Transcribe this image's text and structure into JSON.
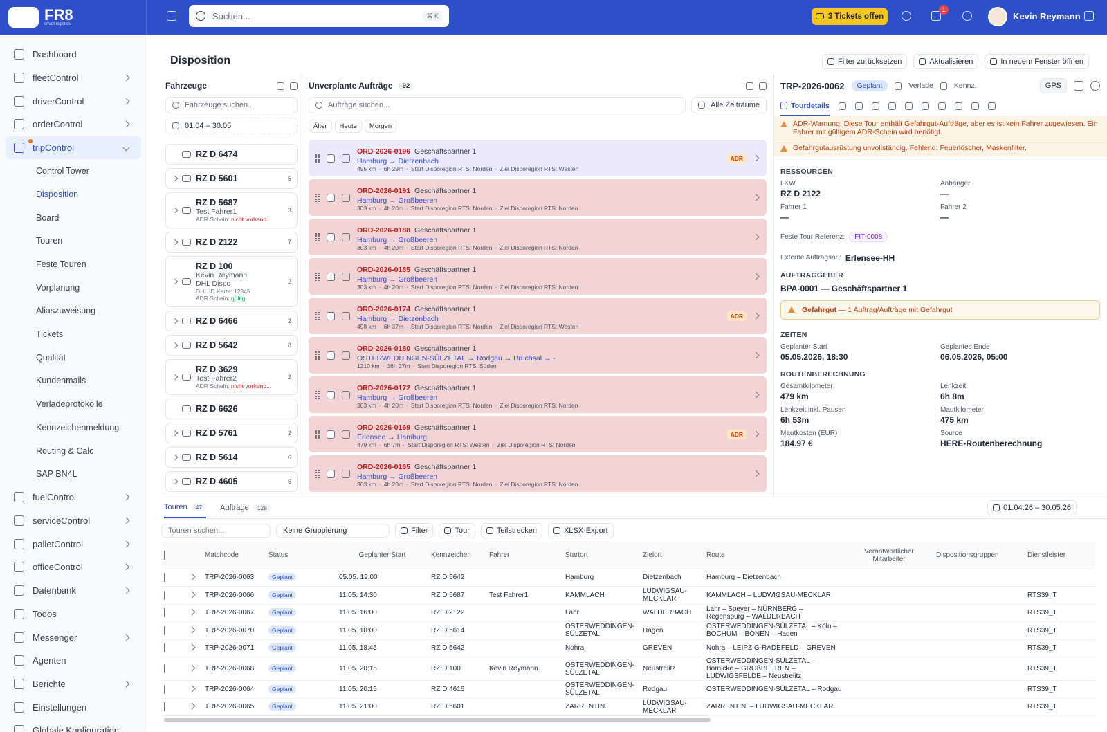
{
  "header": {
    "logo": "FR8",
    "logo_sub": "smart logistics",
    "search": "Suchen...",
    "shortcut": "⌘ K",
    "tickets": "3 Tickets offen",
    "notifications": "1",
    "user": "Kevin Reymann"
  },
  "sidebar": [
    {
      "label": "Dashboard",
      "expandable": false
    },
    {
      "label": "fleetControl",
      "expandable": true
    },
    {
      "label": "driverControl",
      "expandable": true
    },
    {
      "label": "orderControl",
      "expandable": true
    },
    {
      "label": "tripControl",
      "expandable": true,
      "active": true,
      "children": [
        "Control Tower",
        "Disposition",
        "Board",
        "Touren",
        "Feste Touren",
        "Vorplanung",
        "Aliaszuweisung",
        "Tickets",
        "Qualität",
        "Kundenmails",
        "Verladeprotokolle",
        "Kennzeichenmeldung",
        "Routing & Calc",
        "SAP BN4L"
      ],
      "active_child": 1
    },
    {
      "label": "fuelControl",
      "expandable": true
    },
    {
      "label": "serviceControl",
      "expandable": true
    },
    {
      "label": "palletControl",
      "expandable": true
    },
    {
      "label": "officeControl",
      "expandable": true
    },
    {
      "label": "Datenbank",
      "expandable": true
    },
    {
      "label": "Todos",
      "expandable": false
    },
    {
      "label": "Messenger",
      "expandable": true
    },
    {
      "label": "Agenten",
      "expandable": false
    },
    {
      "label": "Berichte",
      "expandable": true
    },
    {
      "label": "Einstellungen",
      "expandable": false
    },
    {
      "label": "Globale Konfiguration",
      "expandable": false
    }
  ],
  "page": {
    "title": "Disposition",
    "actions": [
      "Filter zurücksetzen",
      "Aktualisieren",
      "In neuem Fenster öffnen"
    ]
  },
  "vehicles": {
    "title": "Fahrzeuge",
    "search": "Fahrzeuge suchen...",
    "date": "01.04 – 30.05",
    "items": [
      {
        "plate": "RZ D 6474"
      },
      {
        "plate": "RZ D 5601",
        "count": "5"
      },
      {
        "plate": "RZ D 5687",
        "count": "3",
        "lines": [
          "Test Fahrer1"
        ],
        "adr": {
          "label": "ADR Schein:",
          "status": "nicht vorhand...",
          "ok": false
        }
      },
      {
        "plate": "RZ D 2122",
        "count": "7"
      },
      {
        "plate": "RZ D 100",
        "count": "2",
        "lines": [
          "Kevin Reymann",
          "DHL Dispo"
        ],
        "small": [
          "DHL ID Karte: 12345"
        ],
        "adr": {
          "label": "ADR Schein:",
          "status": "gültig",
          "ok": true
        }
      },
      {
        "plate": "RZ D 6466",
        "count": "2"
      },
      {
        "plate": "RZ D 5642",
        "count": "8"
      },
      {
        "plate": "RZ D 3629",
        "count": "2",
        "lines": [
          "Test Fahrer2"
        ],
        "adr": {
          "label": "ADR Schein:",
          "status": "nicht vorhand...",
          "ok": false
        }
      },
      {
        "plate": "RZ D 6626"
      },
      {
        "plate": "RZ D 5761",
        "count": "2"
      },
      {
        "plate": "RZ D 5614",
        "count": "6"
      },
      {
        "plate": "RZ D 4605",
        "count": "6"
      }
    ]
  },
  "orders": {
    "title": "Unverplante Aufträge",
    "count": "92",
    "search": "Aufträge suchen...",
    "range": "Alle Zeiträume",
    "filters": [
      "Älter",
      "Heute",
      "Morgen"
    ],
    "items": [
      {
        "id": "ORD-2026-0196",
        "partner": "Geschäftspartner 1",
        "route": "Hamburg → Dietzenbach",
        "meta": [
          "495 km",
          "6h 29m",
          "Start Disporegion RTS: Norden",
          "Ziel Disporegion RTS: Westen"
        ],
        "badge": "ADR",
        "selected": true
      },
      {
        "id": "ORD-2026-0191",
        "partner": "Geschäftspartner 1",
        "route": "Hamburg → Großbeeren",
        "meta": [
          "303 km",
          "4h 20m",
          "Start Disporegion RTS: Norden",
          "Ziel Disporegion RTS: Norden"
        ]
      },
      {
        "id": "ORD-2026-0188",
        "partner": "Geschäftspartner 1",
        "route": "Hamburg → Großbeeren",
        "meta": [
          "303 km",
          "4h 20m",
          "Start Disporegion RTS: Norden",
          "Ziel Disporegion RTS: Norden"
        ]
      },
      {
        "id": "ORD-2026-0185",
        "partner": "Geschäftspartner 1",
        "route": "Hamburg → Großbeeren",
        "meta": [
          "303 km",
          "4h 20m",
          "Start Disporegion RTS: Norden",
          "Ziel Disporegion RTS: Norden"
        ]
      },
      {
        "id": "ORD-2026-0174",
        "partner": "Geschäftspartner 1",
        "route": "Hamburg → Dietzenbach",
        "meta": [
          "498 km",
          "6h 37m",
          "Start Disporegion RTS: Norden",
          "Ziel Disporegion RTS: Westen"
        ],
        "badge": "ADR"
      },
      {
        "id": "ORD-2026-0180",
        "partner": "Geschäftspartner 1",
        "route": "OSTERWEDDINGEN-SÜLZETAL → Rodgau → Bruchsal → -",
        "meta": [
          "1210 km",
          "16h 27m",
          "Start Disporegion RTS: Süden"
        ]
      },
      {
        "id": "ORD-2026-0172",
        "partner": "Geschäftspartner 1",
        "route": "Hamburg → Großbeeren",
        "meta": [
          "303 km",
          "4h 20m",
          "Start Disporegion RTS: Norden",
          "Ziel Disporegion RTS: Norden"
        ]
      },
      {
        "id": "ORD-2026-0169",
        "partner": "Geschäftspartner 1",
        "route": "Erlensee → Hamburg",
        "meta": [
          "479 km",
          "6h 7m",
          "Start Disporegion RTS: Westen",
          "Ziel Disporegion RTS: Norden"
        ],
        "badge": "ADR"
      },
      {
        "id": "ORD-2026-0165",
        "partner": "Geschäftspartner 1",
        "route": "Hamburg → Großbeeren",
        "meta": [
          "303 km",
          "4h 20m",
          "Start Disporegion RTS: Norden",
          "Ziel Disporegion RTS: Norden"
        ]
      }
    ]
  },
  "detail": {
    "id": "TRP-2026-0062",
    "status": "Geplant",
    "links": [
      "Verlade",
      "Kennz."
    ],
    "gps": "GPS",
    "tab": "Tourdetails",
    "warnings": [
      "ADR-Warnung: Diese Tour enthält Gefahrgut-Aufträge, aber es ist kein Fahrer zugewiesen. Ein Fahrer mit gültigem ADR-Schein wird benötigt.",
      "Gefahrgutausrüstung unvollständig. Fehlend: Feuerlöscher, Maskenfilter."
    ],
    "resources": {
      "title": "RESSOURCEN",
      "fields": [
        {
          "label": "LKW",
          "value": "RZ D 2122"
        },
        {
          "label": "Anhänger",
          "value": "—"
        },
        {
          "label": "Fahrer 1",
          "value": "—"
        },
        {
          "label": "Fahrer 2",
          "value": "—"
        }
      ]
    },
    "reference": {
      "label": "Feste Tour Referenz:",
      "value": "FIT-0008"
    },
    "external": {
      "label": "Externe Auftragsnr.:",
      "value": "Erlensee-HH"
    },
    "client": {
      "title": "AUFTRAGGEBER",
      "value": "BPA-0001 — Geschäftspartner 1"
    },
    "hazard": {
      "label": "Gefahrgut",
      "text": " — 1 Auftrag/Aufträge mit Gefahrgut"
    },
    "times": {
      "title": "ZEITEN",
      "fields": [
        {
          "label": "Geplanter Start",
          "value": "05.05.2026, 18:30"
        },
        {
          "label": "Geplantes Ende",
          "value": "06.05.2026, 05:00"
        }
      ]
    },
    "routing": {
      "title": "ROUTENBERECHNUNG",
      "fields": [
        {
          "label": "Gesamtkilometer",
          "value": "479 km"
        },
        {
          "label": "Lenkzeit",
          "value": "6h 8m"
        },
        {
          "label": "Lenkzeit inkl. Pausen",
          "value": "6h 53m"
        },
        {
          "label": "Mautkilometer",
          "value": "475 km"
        },
        {
          "label": "Mautkosten (EUR)",
          "value": "184.97 €"
        },
        {
          "label": "Source",
          "value": "HERE-Routenberechnung"
        }
      ]
    }
  },
  "bottom": {
    "tabs": [
      {
        "label": "Touren",
        "count": "47"
      },
      {
        "label": "Aufträge",
        "count": "128"
      }
    ],
    "date": "01.04.26 – 30.05.26",
    "search": "Touren suchen...",
    "grouping": "Keine Gruppierung",
    "buttons": [
      "Filter",
      "Tour",
      "Teilstrecken",
      "XLSX-Export"
    ],
    "table": {
      "columns": [
        "Matchcode",
        "Status",
        "Geplanter Start",
        "Kennzeichen",
        "Fahrer",
        "Startort",
        "Zielort",
        "Route",
        "Verantwortlicher Mitarbeiter",
        "Dispositionsgruppen",
        "Dienstleister"
      ],
      "rows": [
        [
          "TRP-2026-0063",
          "Geplant",
          "05.05. 19:00",
          "RZ D 5642",
          null,
          "Hamburg",
          "Dietzenbach",
          "Hamburg – Dietzenbach",
          null,
          null,
          null
        ],
        [
          "TRP-2026-0066",
          "Geplant",
          "11.05. 14:30",
          "RZ D 5687",
          "Test Fahrer1",
          "KAMMLACH",
          "LUDWIGSAU-MECKLAR",
          "KAMMLACH – LUDWIGSAU-MECKLAR",
          null,
          null,
          "RTS39_T"
        ],
        [
          "TRP-2026-0067",
          "Geplant",
          "11.05. 16:00",
          "RZ D 2122",
          null,
          "Lahr",
          "WALDERBACH",
          "Lahr – Speyer – NÜRNBERG – Regensburg – WALDERBACH",
          null,
          null,
          "RTS39_T"
        ],
        [
          "TRP-2026-0070",
          "Geplant",
          "11.05. 18:00",
          "RZ D 5614",
          null,
          "OSTERWEDDINGEN-SÜLZETAL",
          "Hagen",
          "OSTERWEDDINGEN-SÜLZETAL – Köln – BOCHUM – BÖNEN – Hagen",
          null,
          null,
          "RTS39_T"
        ],
        [
          "TRP-2026-0071",
          "Geplant",
          "11.05. 18:45",
          "RZ D 5642",
          null,
          "Nohra",
          "GREVEN",
          "Nohra – LEIPZIG-RADEFELD – GREVEN",
          null,
          null,
          "RTS39_T"
        ],
        [
          "TRP-2026-0068",
          "Geplant",
          "11.05. 20:15",
          "RZ D 100",
          "Kevin Reymann",
          "OSTERWEDDINGEN-SÜLZETAL",
          "Neustrelitz",
          "OSTERWEDDINGEN-SÜLZETAL – Börnicke – GROßBEEREN – LUDWIGSFELDE – Neustrelitz",
          null,
          null,
          "RTS39_T"
        ],
        [
          "TRP-2026-0064",
          "Geplant",
          "11.05. 20:15",
          "RZ D 4616",
          null,
          "OSTERWEDDINGEN-SÜLZETAL",
          "Rodgau",
          "OSTERWEDDINGEN-SÜLZETAL – Rodgau",
          null,
          null,
          "RTS39_T"
        ],
        [
          "TRP-2026-0065",
          "Geplant",
          "11.05. 21:00",
          "RZ D 5601",
          null,
          "ZARRENTIN.",
          "LUDWIGSAU-MECKLAR",
          "ZARRENTIN. – LUDWIGSAU-MECKLAR",
          null,
          null,
          "RTS39_T"
        ]
      ]
    }
  }
}
